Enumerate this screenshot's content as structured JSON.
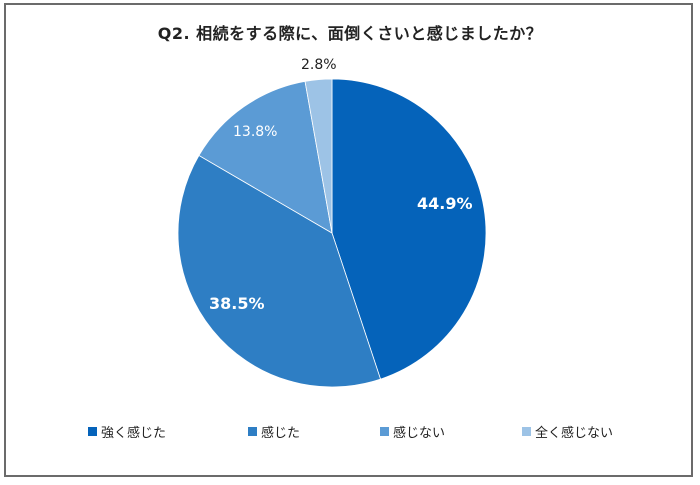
{
  "title": "Q2.  相続をする際に、面倒くさいと感じましたか？",
  "chart_data": {
    "type": "pie",
    "title": "Q2.  相続をする際に、面倒くさいと感じましたか？",
    "categories": [
      "強く感じた",
      "感じた",
      "感じない",
      "全く感じない"
    ],
    "values": [
      44.9,
      38.5,
      13.8,
      2.8
    ],
    "labels": [
      "44.9%",
      "38.5%",
      "13.8%",
      "2.8%"
    ],
    "colors": [
      "#0563BA",
      "#2E7EC4",
      "#5B9BD5",
      "#9DC3E6"
    ],
    "start_angle": "12 o'clock, clockwise",
    "legend_position": "bottom"
  },
  "legend": [
    {
      "label": "強く感じた",
      "color": "#0563BA"
    },
    {
      "label": "感じた",
      "color": "#2E7EC4"
    },
    {
      "label": "感じない",
      "color": "#5B9BD5"
    },
    {
      "label": "全く感じない",
      "color": "#9DC3E6"
    }
  ],
  "slice_labels": [
    "44.9%",
    "38.5%",
    "13.8%",
    "2.8%"
  ]
}
